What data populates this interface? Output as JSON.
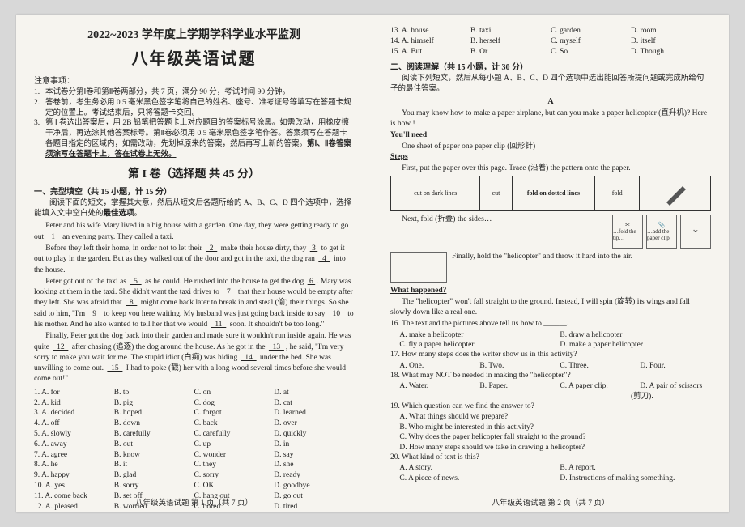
{
  "header": {
    "year_line": "2022~2023 学年度上学期学科学业水平监测",
    "subject_title": "八年级英语试题"
  },
  "notice": {
    "heading": "注意事项：",
    "items": [
      "本试卷分第Ⅰ卷和第Ⅱ卷两部分，共 7 页，满分 90 分，考试时间 90 分钟。",
      "答卷前，考生务必用 0.5 毫米黑色签字笔将自己的姓名、座号、准考证号等填写在答题卡规定的位置上。考试结束后，只将答题卡交回。",
      "第 Ⅰ 卷选出答案后，用 2B 铅笔把答题卡上对应题目的答案标号涂黑。如需改动，用橡皮擦干净后，再选涂其他答案标号。第Ⅱ卷必须用 0.5 毫米黑色签字笔作答。答案须写在答题卡各题目指定的区域内，如需改动，先划掉原来的答案，然后再写上新的答案。第Ⅰ、Ⅱ卷答案须涂写在答题卡上，答在试卷上无效。"
    ]
  },
  "part1": {
    "heading": "第 I 卷（选择题 共 45 分）",
    "cloze_heading": "一、完型填空（共 15 小题，计 15 分）",
    "cloze_intro": "阅读下面的短文，掌握其大意，然后从短文后各题所给的 A、B、C、D 四个选项中，选择能填入文中空白处的最佳选项。",
    "passage": [
      "Peter and his wife Mary lived in a big house with a garden. One day, they were getting ready to go out ___1___ an evening party. They called a taxi.",
      "Before they left their home, in order not to let their ___2___ make their house dirty, they ___3___ to get it out to play in the garden. But as they walked out of the door and got in the taxi, the dog ran ___4___ into the house.",
      "Peter got out of the taxi as ___5___ as he could. He rushed into the house to get the dog ___6___. Mary was looking at them in the taxi. She didn't want the taxi driver to ___7___ that their house would be empty after they left. She was afraid that ___8___ might come back later to break in and steal (偷) their things. So she said to him, \"I'm ___9___ to keep you here waiting. My husband was just going back inside to say ___10___ to his mother. And he also wanted to tell her that we would ___11___ soon. It shouldn't be too long.\"",
      "Finally, Peter got the dog back into their garden and made sure it wouldn't run inside again. He was quite ___12___ after chasing (追逐) the dog around the house. As he got in the ___13___, he said, \"I'm very sorry to make you wait for me. The stupid idiot (白痴) was hiding ___14___ under the bed. She was unwilling to come out. ___15___ I had to poke (戳) her with a long wood several times before she would come out!\""
    ],
    "options": [
      {
        "n": "1",
        "a": "A. for",
        "b": "B. to",
        "c": "C. on",
        "d": "D. at"
      },
      {
        "n": "2",
        "a": "A. kid",
        "b": "B. pig",
        "c": "C. dog",
        "d": "D. cat"
      },
      {
        "n": "3",
        "a": "A. decided",
        "b": "B. hoped",
        "c": "C. forgot",
        "d": "D. learned"
      },
      {
        "n": "4",
        "a": "A. off",
        "b": "B. down",
        "c": "C. back",
        "d": "D. over"
      },
      {
        "n": "5",
        "a": "A. slowly",
        "b": "B. carefully",
        "c": "C. carefully",
        "d": "D. quickly"
      },
      {
        "n": "6",
        "a": "A. away",
        "b": "B. out",
        "c": "C. up",
        "d": "D. in"
      },
      {
        "n": "7",
        "a": "A. agree",
        "b": "B. know",
        "c": "C. wonder",
        "d": "D. say"
      },
      {
        "n": "8",
        "a": "A. he",
        "b": "B. it",
        "c": "C. they",
        "d": "D. she"
      },
      {
        "n": "9",
        "a": "A. happy",
        "b": "B. glad",
        "c": "C. sorry",
        "d": "D. ready"
      },
      {
        "n": "10",
        "a": "A. yes",
        "b": "B. sorry",
        "c": "C. OK",
        "d": "D. goodbye"
      },
      {
        "n": "11",
        "a": "A. come back",
        "b": "B. set off",
        "c": "C. hang out",
        "d": "D. go out"
      },
      {
        "n": "12",
        "a": "A. pleased",
        "b": "B. worried",
        "c": "C. bored",
        "d": "D. tired"
      }
    ],
    "footer": "八年级英语试题  第 1 页（共 7 页）"
  },
  "part2": {
    "top_options": [
      {
        "n": "13",
        "a": "A. house",
        "b": "B. taxi",
        "c": "C. garden",
        "d": "D. room"
      },
      {
        "n": "14",
        "a": "A. himself",
        "b": "B. herself",
        "c": "C. myself",
        "d": "D. itself"
      },
      {
        "n": "15",
        "a": "A. But",
        "b": "B. Or",
        "c": "C. So",
        "d": "D. Though"
      }
    ],
    "reading_heading": "二、阅读理解（共 15 小题，计 30 分）",
    "reading_intro": "阅读下列短文，然后从每小题 A、B、C、D 四个选项中选出能回答所提问题或完成所给句子的最佳答案。",
    "label_a": "A",
    "para1": "You may know how to make a paper airplane, but can you make a paper helicopter (直升机)? Here is how !",
    "youll_need": "You'll need",
    "need_line": "One sheet of paper   one paper clip (回形针)",
    "steps": "Steps",
    "step1": "First, put the paper over this page. Trace (沿着) the pattern onto the paper.",
    "fig_labels": {
      "cut": "cut on dark lines",
      "cell2": "cut",
      "cell3": "fold on dotted lines",
      "cell4": "fold"
    },
    "step2": "Next, fold (折叠) the sides…",
    "fold_label": "…fold the tip…",
    "clip_label": "…add the paper clip",
    "step3": "Finally, hold the \"helicopter\" and throw it hard into the air.",
    "what_h": "What happened?",
    "what_p": "The \"helicopter\" won't fall straight to the ground. Instead, I will spin (旋转) its wings and fall slowly down like a real one.",
    "questions": [
      {
        "q": "16. The text and the pictures above tell us how to ______.",
        "opts": [
          "A. make a helicopter",
          "B. draw a helicopter",
          "C. fly a paper helicopter",
          "D. make a paper helicopter"
        ],
        "cols": 2
      },
      {
        "q": "17. How many steps does the writer show us in this activity?",
        "opts": [
          "A. One.",
          "B. Two.",
          "C. Three.",
          "D. Four."
        ],
        "cols": 4
      },
      {
        "q": "18. What may NOT be needed in making the \"helicopter\"?",
        "opts": [
          "A. Water.",
          "B. Paper.",
          "C. A paper clip.",
          "D. A pair of scissors (剪刀)."
        ],
        "cols": 4
      },
      {
        "q": "19. Which question can we find the answer to?",
        "subs": [
          "A. What things should we prepare?",
          "B. Who might be interested in this activity?",
          "C. Why does the paper helicopter fall straight to the ground?",
          "D. How many steps should we take in drawing a helicopter?"
        ]
      },
      {
        "q": "20. What kind of text is this?",
        "opts": [
          "A. A story.",
          "B. A report.",
          "C. A piece of news.",
          "D. Instructions of making something."
        ],
        "cols": 2
      }
    ],
    "footer": "八年级英语试题  第 2 页（共 7 页）"
  }
}
